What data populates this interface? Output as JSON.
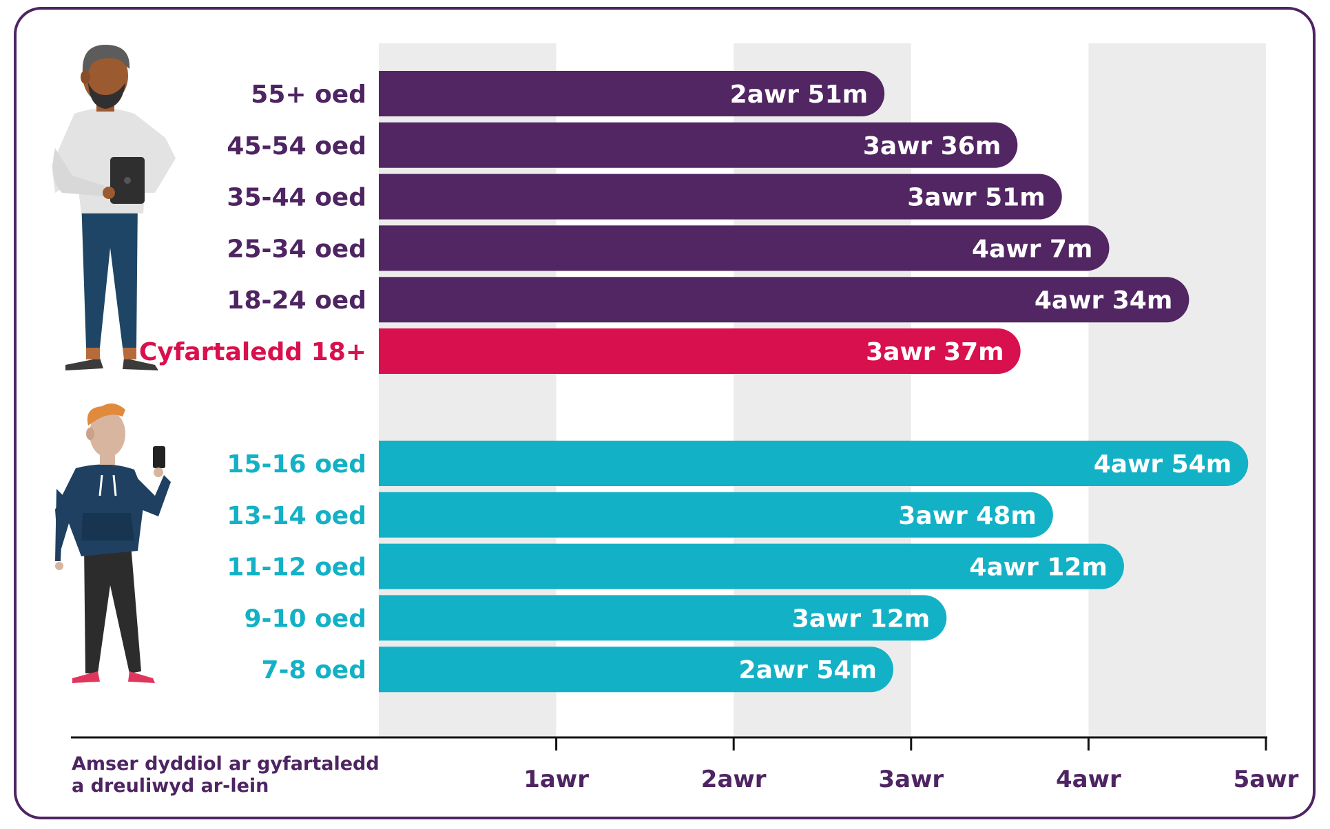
{
  "chart_data": {
    "type": "bar",
    "orientation": "horizontal",
    "unit": "hours",
    "xlim": [
      0,
      5
    ],
    "xticks": [
      {
        "value": 1,
        "label": "1awr"
      },
      {
        "value": 2,
        "label": "2awr"
      },
      {
        "value": 3,
        "label": "3awr"
      },
      {
        "value": 4,
        "label": "4awr"
      },
      {
        "value": 5,
        "label": "5awr"
      }
    ],
    "xlabel": [
      "Amser dyddiol ar gyfartaledd",
      "a dreuliwyd ar-lein"
    ],
    "groups": [
      {
        "name": "adults",
        "color": "#512663",
        "bars": [
          {
            "category": "55+ oed",
            "value": 2.85,
            "label": "2awr  51m"
          },
          {
            "category": "45-54 oed",
            "value": 3.6,
            "label": "3awr  36m"
          },
          {
            "category": "35-44 oed",
            "value": 3.85,
            "label": "3awr  51m"
          },
          {
            "category": "25-34 oed",
            "value": 4.1167,
            "label": "4awr  7m"
          },
          {
            "category": "18-24 oed",
            "value": 4.5667,
            "label": "4awr  34m"
          },
          {
            "category": "Cyfartaledd 18+",
            "value": 3.6167,
            "label": "3awr  37m",
            "color": "#d9104e",
            "label_color": "#d9104e"
          }
        ]
      },
      {
        "name": "children",
        "color": "#13b1c6",
        "bars": [
          {
            "category": "15-16 oed",
            "value": 4.9,
            "label": "4awr  54m"
          },
          {
            "category": "13-14 oed",
            "value": 3.8,
            "label": "3awr  48m"
          },
          {
            "category": "11-12 oed",
            "value": 4.2,
            "label": "4awr  12m"
          },
          {
            "category": "9-10 oed",
            "value": 3.2,
            "label": "3awr 12m"
          },
          {
            "category": "7-8 oed",
            "value": 2.9,
            "label": "2awr  54m"
          }
        ]
      }
    ],
    "grid": "alternating vertical bands",
    "colors": {
      "adult_label": "#4e2462",
      "child_label": "#13b1c6",
      "band": "#ececec",
      "axis": "#111111",
      "frame": "#4e2462"
    }
  },
  "icons": [
    "man-with-tablet-icon",
    "boy-with-phone-icon"
  ]
}
